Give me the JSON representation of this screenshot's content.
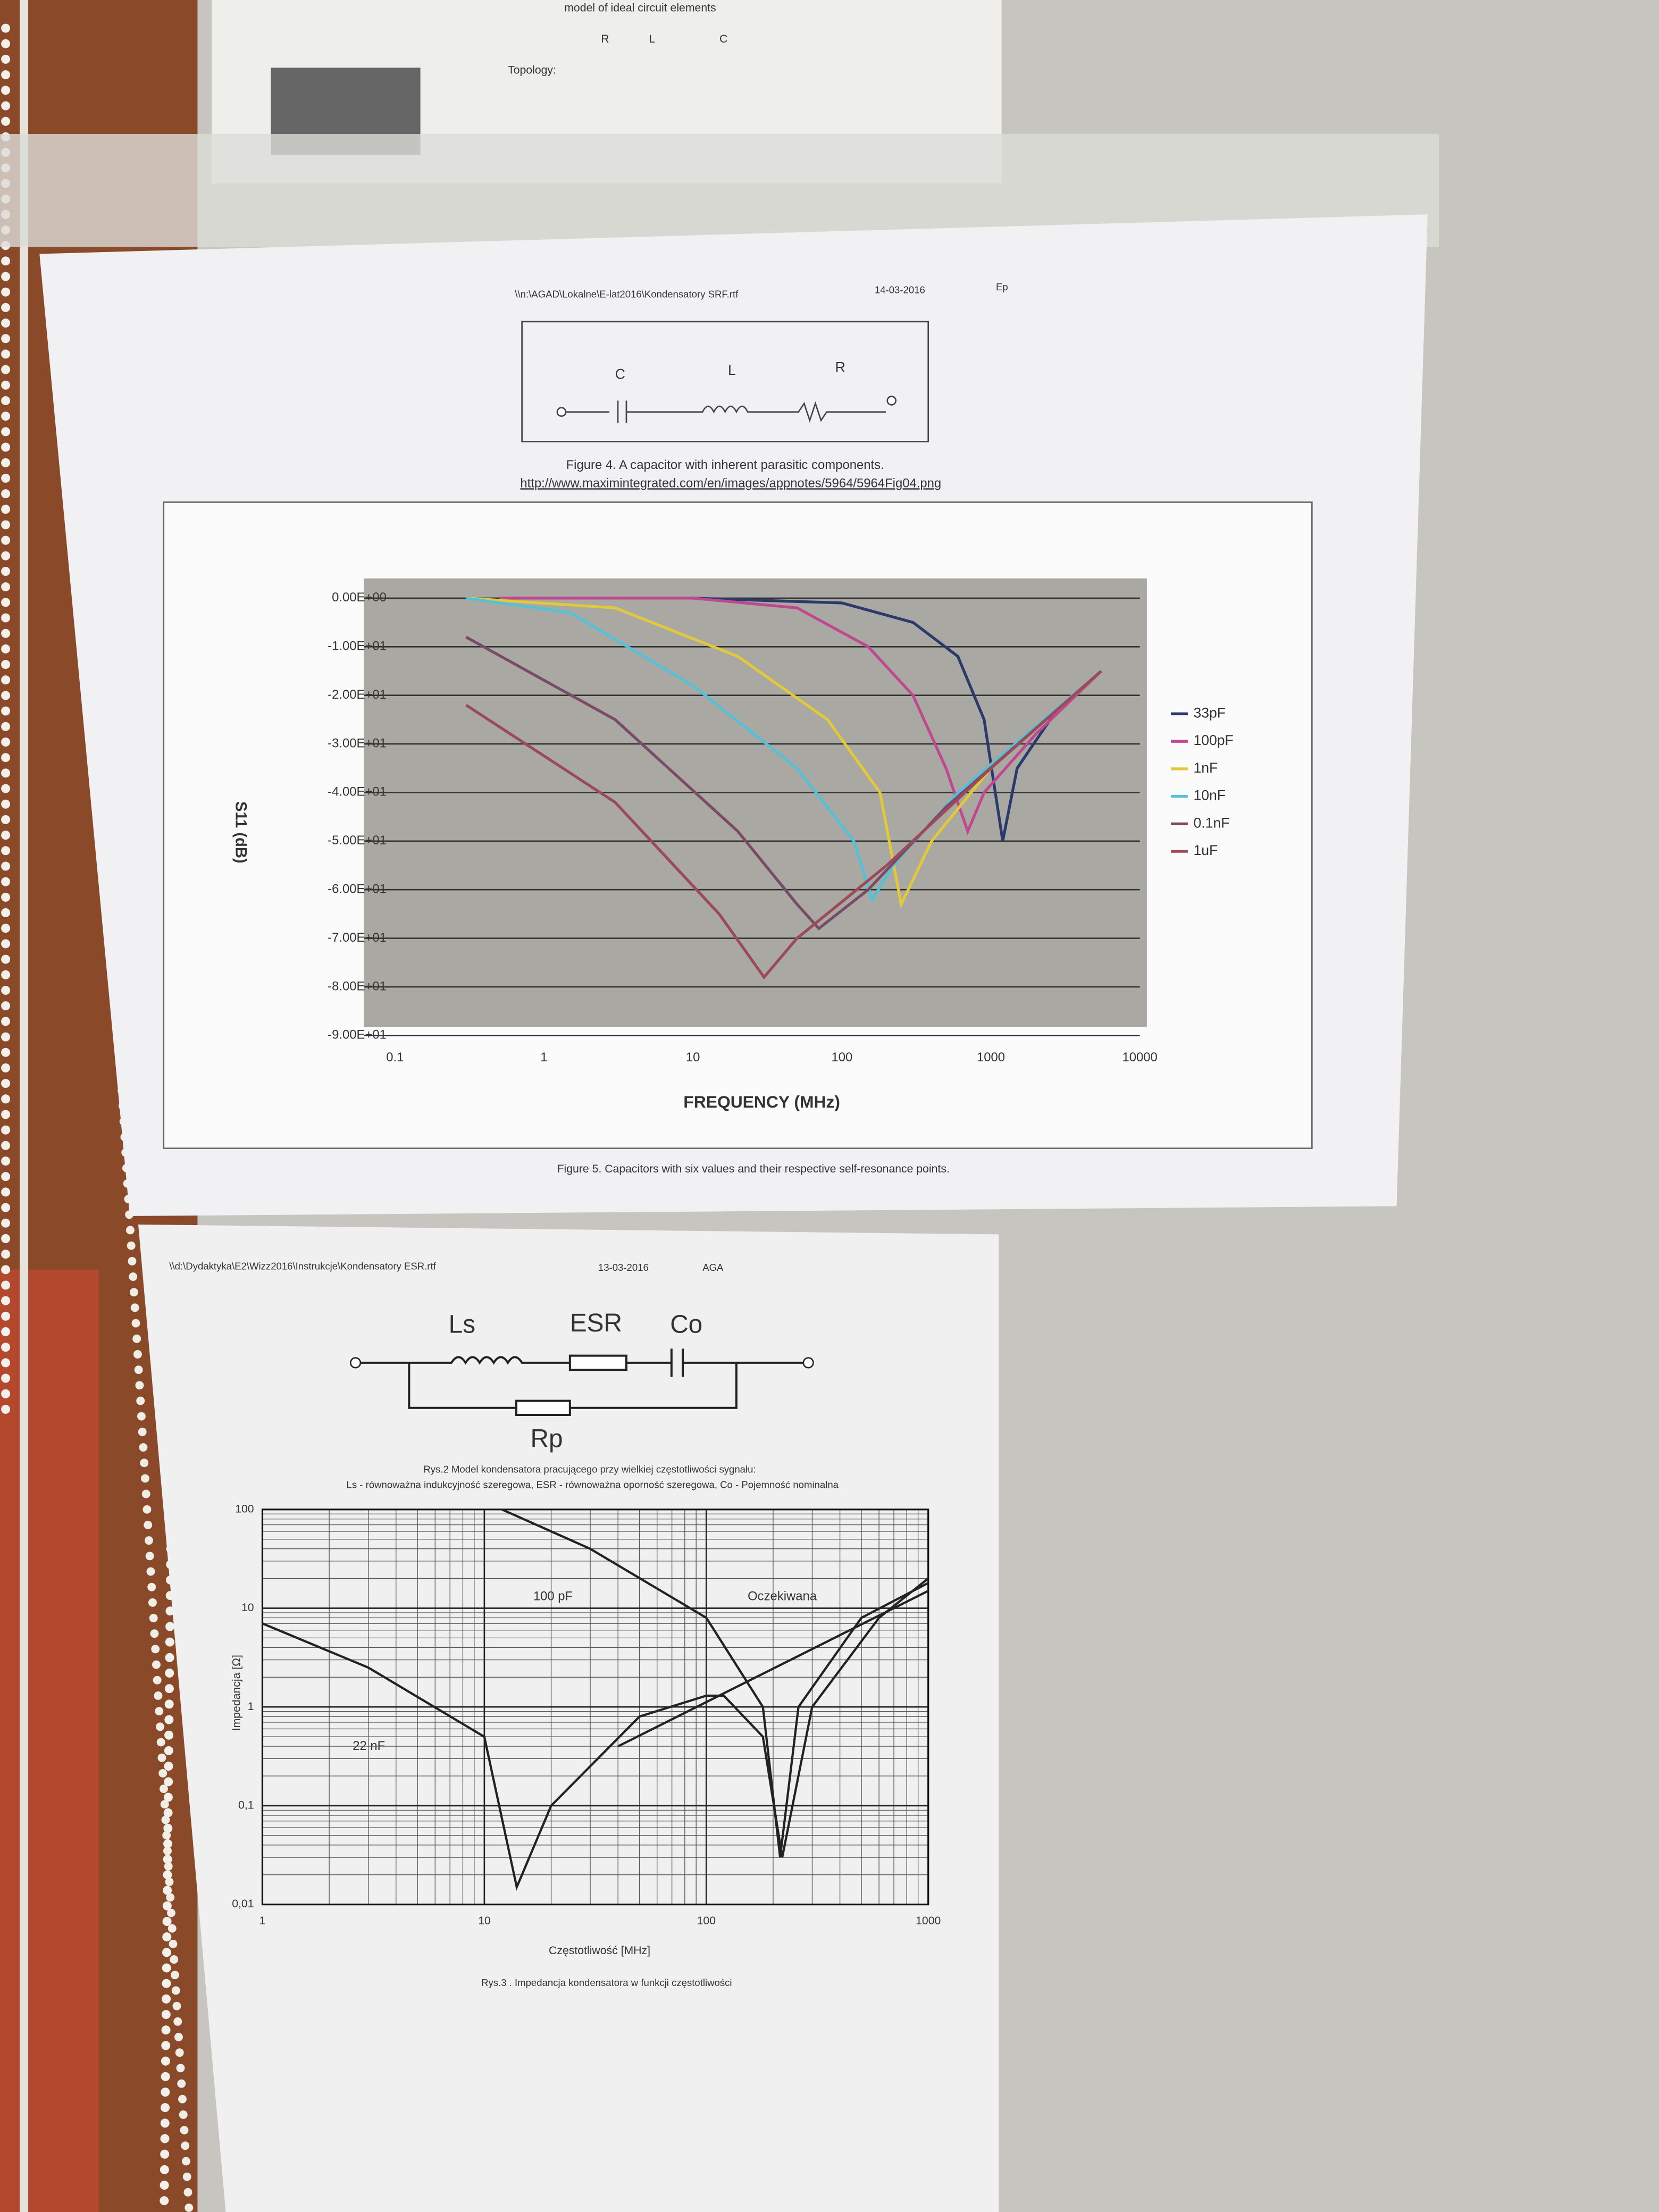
{
  "top_sheet": {
    "line1": "model of ideal circuit elements",
    "labels": [
      "R",
      "L",
      "C"
    ],
    "topology": "Topology:"
  },
  "sheet1": {
    "path": "\\\\n:\\AGAD\\Lokalne\\E-lat2016\\Kondensatory SRF.rtf",
    "date": "14-03-2016",
    "author": "Ep",
    "circuit": [
      "C",
      "L",
      "R"
    ],
    "caption4": "Figure 4. A capacitor with inherent parasitic components.",
    "link": "http://www.maximintegrated.com/en/images/appnotes/5964/5964Fig04.png",
    "caption5": "Figure 5. Capacitors with six values and their respective self-resonance points."
  },
  "sheet2": {
    "path": "\\\\d:\\Dydaktyka\\E2\\Wizz2016\\Instrukcje\\Kondensatory ESR.rtf",
    "date": "13-03-2016",
    "author": "AGA",
    "circuit": [
      "Ls",
      "ESR",
      "Co",
      "Rp"
    ],
    "caption2a": "Rys.2 Model kondensatora pracującego przy wielkiej częstotliwości sygnału:",
    "caption2b": "Ls - równoważna indukcyjność szeregowa, ESR - równoważna oporność szeregowa, Co - Pojemność nominalna",
    "caption3": "Rys.3 . Impedancja kondensatora w funkcji częstotliwości"
  },
  "chart_data": [
    {
      "type": "line",
      "xscale": "log",
      "y_label": "S11 (dB)",
      "x_label": "FREQUENCY (MHz)",
      "grid": true,
      "legend": "right",
      "xlim": [
        0.1,
        10000
      ],
      "xticks": [
        0.1,
        1,
        10,
        100,
        1000,
        10000
      ],
      "ylim": [
        -90,
        0
      ],
      "yticks": [
        {
          "value": 0,
          "label": "0.00E+00"
        },
        {
          "value": -10,
          "label": "-1.00E+01"
        },
        {
          "value": -20,
          "label": "-2.00E+01"
        },
        {
          "value": -30,
          "label": "-3.00E+01"
        },
        {
          "value": -40,
          "label": "-4.00E+01"
        },
        {
          "value": -50,
          "label": "-5.00E+01"
        },
        {
          "value": -60,
          "label": "-6.00E+01"
        },
        {
          "value": -70,
          "label": "-7.00E+01"
        },
        {
          "value": -80,
          "label": "-8.00E+01"
        },
        {
          "value": -90,
          "label": "-9.00E+01"
        }
      ],
      "series": [
        {
          "name": "33pF",
          "color": "#2b3a6b",
          "x": [
            0.5,
            10,
            100,
            300,
            600,
            900,
            1200,
            1500,
            2500,
            5500
          ],
          "values": [
            0,
            0,
            -1,
            -5,
            -12,
            -25,
            -50,
            -35,
            -25,
            -15
          ]
        },
        {
          "name": "100pF",
          "color": "#c0488f",
          "x": [
            0.5,
            10,
            50,
            150,
            300,
            500,
            700,
            900,
            2000,
            5500
          ],
          "values": [
            0,
            0,
            -2,
            -10,
            -20,
            -35,
            -48,
            -40,
            -28,
            -15
          ]
        },
        {
          "name": "1nF",
          "color": "#e2c93a",
          "x": [
            0.3,
            3,
            20,
            80,
            180,
            250,
            400,
            1000,
            5500
          ],
          "values": [
            0,
            -2,
            -12,
            -25,
            -40,
            -63,
            -50,
            -35,
            -15
          ]
        },
        {
          "name": "10nF",
          "color": "#56c0d6",
          "x": [
            0.3,
            1.5,
            10,
            50,
            120,
            160,
            220,
            600,
            5500
          ],
          "values": [
            0,
            -3,
            -18,
            -35,
            -50,
            -62,
            -55,
            -40,
            -15
          ]
        },
        {
          "name": "0.1nF",
          "color": "#7a4a66",
          "x": [
            0.3,
            3,
            20,
            50,
            70,
            150,
            500,
            5500
          ],
          "values": [
            -8,
            -25,
            -48,
            -63,
            -68,
            -60,
            -43,
            -15
          ]
        },
        {
          "name": "1uF",
          "color": "#9c4a5a",
          "x": [
            0.3,
            3,
            15,
            30,
            50,
            200,
            1000,
            5500
          ],
          "values": [
            -22,
            -42,
            -65,
            -78,
            -70,
            -55,
            -35,
            -15
          ]
        }
      ]
    },
    {
      "type": "line",
      "xscale": "log",
      "yscale": "log",
      "y_label": "Impedancja [Ω]",
      "x_label": "Częstotliwość [MHz]",
      "grid": true,
      "minor_grid": true,
      "xlim": [
        1,
        1000
      ],
      "xticks": [
        1,
        10,
        100,
        1000
      ],
      "ylim": [
        0.01,
        100
      ],
      "yticks": [
        {
          "value": 0.01,
          "label": "0,01"
        },
        {
          "value": 0.1,
          "label": "0,1"
        },
        1,
        10,
        100
      ],
      "annotations": [
        "100 pF",
        "22 nF",
        "Oczekiwana"
      ],
      "series": [
        {
          "color": "#222222",
          "x": [
            1,
            3,
            10,
            14,
            20,
            50,
            100,
            120,
            180,
            220,
            300,
            600,
            1000
          ],
          "values": [
            7,
            2.5,
            0.5,
            0.015,
            0.1,
            0.8,
            1.3,
            1.3,
            0.5,
            0.03,
            1,
            8,
            20
          ]
        },
        {
          "color": "#222222",
          "x": [
            12,
            30,
            100,
            180,
            215,
            260,
            500,
            1000
          ],
          "values": [
            100,
            40,
            8,
            1,
            0.03,
            1,
            8,
            18
          ]
        },
        {
          "color": "#222222",
          "x": [
            40,
            1000
          ],
          "values": [
            0.4,
            15
          ]
        }
      ]
    }
  ]
}
